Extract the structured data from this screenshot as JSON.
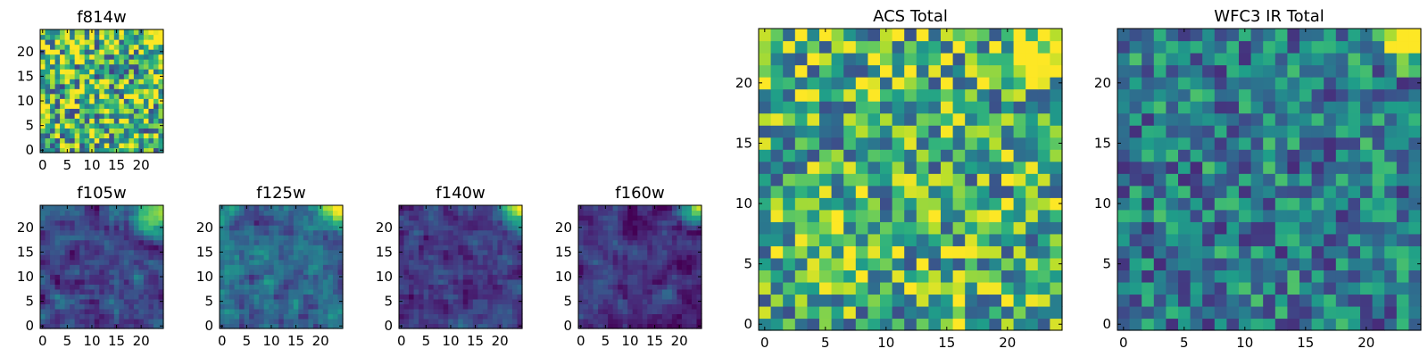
{
  "chart_data": [
    {
      "type": "heatmap",
      "title": "f814w",
      "colormap": "viridis",
      "nx": 25,
      "ny": 25,
      "xlim": [
        0,
        24
      ],
      "ylim": [
        0,
        24
      ],
      "xticks": [
        0,
        5,
        10,
        15,
        20
      ],
      "yticks": [
        0,
        5,
        10,
        15,
        20
      ],
      "pattern": {
        "mean": 0.66,
        "noise": 0.46,
        "corner_boost": 0.9,
        "corner_radius": 4,
        "smooth": false,
        "seed": 11
      }
    },
    {
      "type": "heatmap",
      "title": "f105w",
      "colormap": "viridis",
      "nx": 25,
      "ny": 25,
      "xlim": [
        0,
        24
      ],
      "ylim": [
        0,
        24
      ],
      "xticks": [
        0,
        5,
        10,
        15,
        20
      ],
      "yticks": [
        0,
        5,
        10,
        15,
        20
      ],
      "pattern": {
        "mean": 0.22,
        "noise": 0.18,
        "corner_boost": 0.8,
        "corner_radius": 8,
        "smooth": true,
        "seed": 23
      }
    },
    {
      "type": "heatmap",
      "title": "f125w",
      "colormap": "viridis",
      "nx": 25,
      "ny": 25,
      "xlim": [
        0,
        24
      ],
      "ylim": [
        0,
        24
      ],
      "xticks": [
        0,
        5,
        10,
        15,
        20
      ],
      "yticks": [
        0,
        5,
        10,
        15,
        20
      ],
      "pattern": {
        "mean": 0.34,
        "noise": 0.2,
        "corner_boost": 0.65,
        "corner_radius": 7,
        "smooth": true,
        "seed": 37
      }
    },
    {
      "type": "heatmap",
      "title": "f140w",
      "colormap": "viridis",
      "nx": 25,
      "ny": 25,
      "xlim": [
        0,
        24
      ],
      "ylim": [
        0,
        24
      ],
      "xticks": [
        0,
        5,
        10,
        15,
        20
      ],
      "yticks": [
        0,
        5,
        10,
        15,
        20
      ],
      "pattern": {
        "mean": 0.18,
        "noise": 0.15,
        "corner_boost": 0.85,
        "corner_radius": 5,
        "smooth": true,
        "seed": 41
      }
    },
    {
      "type": "heatmap",
      "title": "f160w",
      "colormap": "viridis",
      "nx": 25,
      "ny": 25,
      "xlim": [
        0,
        24
      ],
      "ylim": [
        0,
        24
      ],
      "xticks": [
        0,
        5,
        10,
        15,
        20
      ],
      "yticks": [
        0,
        5,
        10,
        15,
        20
      ],
      "pattern": {
        "mean": 0.15,
        "noise": 0.14,
        "corner_boost": 0.9,
        "corner_radius": 5,
        "smooth": true,
        "seed": 53
      }
    },
    {
      "type": "heatmap",
      "title": "ACS Total",
      "colormap": "viridis",
      "nx": 25,
      "ny": 25,
      "xlim": [
        0,
        24
      ],
      "ylim": [
        0,
        24
      ],
      "xticks": [
        0,
        5,
        10,
        15,
        20
      ],
      "yticks": [
        0,
        5,
        10,
        15,
        20
      ],
      "pattern": {
        "mean": 0.64,
        "noise": 0.4,
        "corner_boost": 0.6,
        "corner_radius": 5,
        "smooth": false,
        "seed": 67
      }
    },
    {
      "type": "heatmap",
      "title": "WFC3 IR Total",
      "colormap": "viridis",
      "nx": 25,
      "ny": 25,
      "xlim": [
        0,
        24
      ],
      "ylim": [
        0,
        24
      ],
      "xticks": [
        0,
        5,
        10,
        15,
        20
      ],
      "yticks": [
        0,
        5,
        10,
        15,
        20
      ],
      "pattern": {
        "mean": 0.42,
        "noise": 0.3,
        "corner_boost": 0.75,
        "corner_radius": 4,
        "smooth": false,
        "seed": 79
      }
    }
  ]
}
